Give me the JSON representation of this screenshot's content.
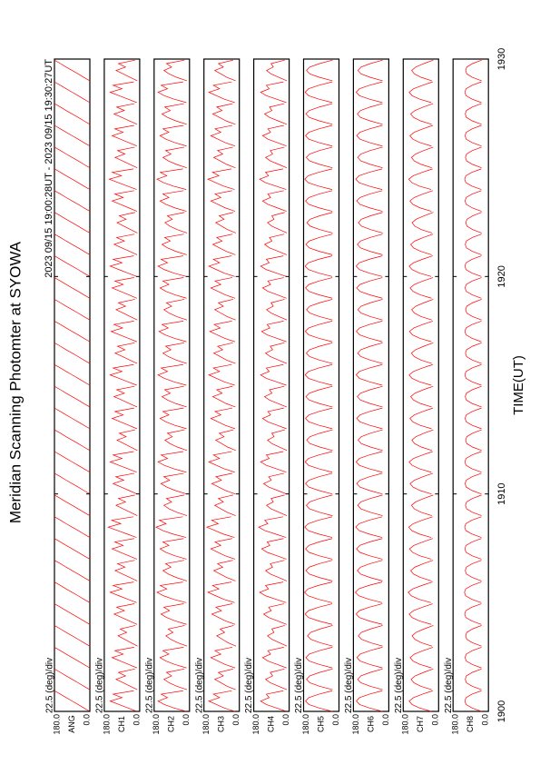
{
  "chart_data": {
    "type": "scan-stack",
    "title": "Meridian Scanning Photomter at SYOWA",
    "subtitle": "2023 09/15 19:00:28UT - 2023 09/15 19:30:27UT",
    "x_label": "TIME(UT)",
    "scale_label": "22.5 (deg)/div",
    "color": "#ff0000",
    "xlim": [
      1900,
      1930
    ],
    "xticks": [
      1900,
      1910,
      1920,
      1930
    ],
    "ylim": [
      0,
      180
    ],
    "yticks": [
      {
        "value": 180,
        "label": "180.0"
      },
      {
        "value": 0,
        "label": "0.0"
      }
    ],
    "x": [
      1900,
      1901,
      1902,
      1903,
      1904,
      1905,
      1906,
      1907,
      1908,
      1909,
      1910,
      1911,
      1912,
      1913,
      1914,
      1915,
      1916,
      1917,
      1918,
      1919,
      1920,
      1921,
      1922,
      1923,
      1924,
      1925,
      1926,
      1927,
      1928,
      1929
    ],
    "panels": [
      {
        "name": "ANG",
        "profile": [
          0,
          0.17,
          0.33,
          0.5,
          0.67,
          0.83,
          1
        ],
        "values": [
          180,
          180,
          180,
          180,
          180,
          180,
          180,
          180,
          180,
          180,
          180,
          180,
          180,
          180,
          180,
          180,
          180,
          180,
          180,
          180,
          180,
          180,
          180,
          180,
          180,
          180,
          180,
          180,
          180,
          180
        ]
      },
      {
        "name": "CH1",
        "profile": [
          0.1,
          0.4,
          0.7,
          1,
          0.6,
          0.9,
          0.2
        ],
        "values": [
          150,
          120,
          140,
          110,
          130,
          150,
          125,
          140,
          160,
          120,
          135,
          150,
          115,
          140,
          130,
          150,
          125,
          145,
          120,
          140,
          150,
          130,
          115,
          140,
          155,
          125,
          140,
          130,
          150,
          120
        ]
      },
      {
        "name": "CH2",
        "profile": [
          0.1,
          0.5,
          0.8,
          1,
          0.7,
          0.9,
          0.2
        ],
        "values": [
          160,
          130,
          150,
          120,
          145,
          165,
          135,
          150,
          170,
          130,
          145,
          160,
          125,
          150,
          140,
          160,
          135,
          155,
          130,
          150,
          160,
          140,
          125,
          150,
          165,
          135,
          150,
          140,
          160,
          130
        ]
      },
      {
        "name": "CH3",
        "profile": [
          0.15,
          0.5,
          0.75,
          1,
          0.65,
          0.85,
          0.25
        ],
        "values": [
          155,
          125,
          145,
          115,
          140,
          160,
          130,
          145,
          165,
          125,
          140,
          155,
          120,
          145,
          135,
          155,
          130,
          150,
          125,
          145,
          155,
          135,
          120,
          145,
          160,
          130,
          145,
          135,
          155,
          125
        ]
      },
      {
        "name": "CH4",
        "profile": [
          0.1,
          0.45,
          0.8,
          1,
          0.7,
          0.8,
          0.2
        ],
        "values": [
          145,
          120,
          135,
          110,
          130,
          150,
          120,
          140,
          155,
          115,
          130,
          145,
          110,
          135,
          125,
          145,
          120,
          140,
          115,
          135,
          145,
          125,
          110,
          135,
          150,
          120,
          135,
          125,
          145,
          115
        ]
      },
      {
        "name": "CH5",
        "profile": [
          0.2,
          0.6,
          0.9,
          1,
          0.9,
          0.6,
          0.2
        ],
        "values": [
          170,
          165,
          168,
          160,
          172,
          175,
          168,
          170,
          174,
          166,
          170,
          172,
          164,
          170,
          168,
          172,
          166,
          171,
          165,
          170,
          172,
          168,
          163,
          170,
          174,
          166,
          170,
          168,
          172,
          165
        ]
      },
      {
        "name": "CH6",
        "profile": [
          0.2,
          0.6,
          0.9,
          1,
          0.9,
          0.6,
          0.2
        ],
        "values": [
          165,
          158,
          162,
          155,
          166,
          170,
          160,
          164,
          168,
          158,
          163,
          166,
          156,
          163,
          160,
          166,
          158,
          165,
          157,
          163,
          166,
          160,
          155,
          163,
          168,
          158,
          163,
          160,
          166,
          157
        ]
      },
      {
        "name": "CH7",
        "profile": [
          0.25,
          0.65,
          0.9,
          1,
          0.85,
          0.55,
          0.2
        ],
        "values": [
          150,
          140,
          145,
          135,
          150,
          155,
          142,
          148,
          152,
          138,
          145,
          150,
          136,
          146,
          142,
          150,
          138,
          148,
          137,
          145,
          150,
          142,
          135,
          146,
          152,
          138,
          146,
          142,
          150,
          137
        ]
      },
      {
        "name": "CH8",
        "profile": [
          0.3,
          0.7,
          0.95,
          1,
          0.95,
          0.7,
          0.3
        ],
        "values": [
          120,
          118,
          119,
          116,
          121,
          122,
          118,
          120,
          121,
          117,
          119,
          120,
          116,
          119,
          118,
          120,
          117,
          120,
          116,
          119,
          120,
          118,
          115,
          119,
          121,
          117,
          119,
          118,
          120,
          116
        ]
      }
    ]
  }
}
